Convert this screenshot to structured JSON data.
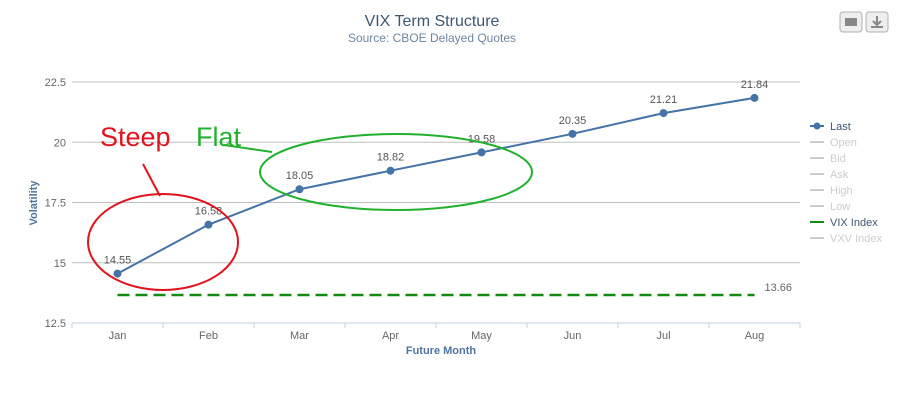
{
  "chart_data": {
    "type": "line",
    "title": "VIX Term Structure",
    "subtitle": "Source: CBOE Delayed Quotes",
    "y_axis_title": "Volatility",
    "x_axis_title": "Future Month",
    "categories": [
      "Jan",
      "Feb",
      "Mar",
      "Apr",
      "May",
      "Jun",
      "Jul",
      "Aug"
    ],
    "ylim": [
      12.5,
      22.5
    ],
    "yticks": [
      12.5,
      15,
      17.5,
      20,
      22.5
    ],
    "grid": true,
    "legend": "right",
    "series": [
      {
        "name": "Last",
        "color": "#4572a7",
        "values": [
          14.55,
          16.58,
          18.05,
          18.82,
          19.58,
          20.35,
          21.21,
          21.84
        ]
      },
      {
        "name": "Open",
        "color": "#cccccc",
        "visible": false
      },
      {
        "name": "Bid",
        "color": "#cccccc",
        "visible": false
      },
      {
        "name": "Ask",
        "color": "#cccccc",
        "visible": false
      },
      {
        "name": "High",
        "color": "#cccccc",
        "visible": false
      },
      {
        "name": "Low",
        "color": "#cccccc",
        "visible": false
      },
      {
        "name": "VIX Index",
        "color": "#138a13",
        "dashed": true,
        "values": [
          13.66,
          13.66,
          13.66,
          13.66,
          13.66,
          13.66,
          13.66,
          13.66
        ]
      },
      {
        "name": "VXV Index",
        "color": "#cccccc",
        "visible": false
      }
    ],
    "annotations": [
      "Steep",
      "Flat"
    ]
  }
}
